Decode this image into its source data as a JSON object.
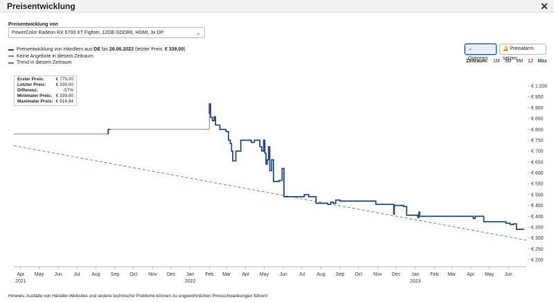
{
  "window": {
    "title": "Preisentwicklung",
    "close_icon": "close-icon"
  },
  "product": {
    "label": "Preisentwicklung von",
    "selected": "PowerColor Radeon RX 6700 XT Fighter, 12GB GDDR6, HDMI, 3x DP"
  },
  "legend": {
    "prefix": "Preisentwicklung von Händlern aus ",
    "country": "DE",
    "mid": " bis ",
    "date": "26.06.2023",
    "suffix": " (letzter Preis: ",
    "last_price": "€ 339,00",
    "close": ")",
    "no_offers": "Keine Angebote in diesem Zeitraum",
    "trend": "Trend in diesem Zeitraum"
  },
  "buttons": {
    "options": "Optionen",
    "alarm": "Preisalarm setzen"
  },
  "timerange": {
    "label": "Zeitraum:",
    "options": [
      "1M",
      "3M",
      "6M",
      "1J",
      "Max"
    ],
    "active": "Max"
  },
  "stats": [
    {
      "k": "Erster Preis:",
      "v": "€ 779,00"
    },
    {
      "k": "Letzter Preis:",
      "v": "€ 339,00"
    },
    {
      "k": "Differenz:",
      "v": "-57%"
    },
    {
      "k": "Minimaler Preis:",
      "v": "€ 339,00"
    },
    {
      "k": "Maximaler Preis:",
      "v": "€ 916,94"
    }
  ],
  "footer": "Hinweis: Ausfälle von Händler-Websites und andere technische Probleme können zu ungewöhnlichen Preisschwankungen führen!",
  "colors": {
    "price": "#1f4e96",
    "no_offers": "#888888",
    "trend": "#4aa33d"
  },
  "chart_data": {
    "type": "line",
    "ylim": [
      200,
      1000
    ],
    "y_unit": "€",
    "y_ticks": [
      "€ 200",
      "€ 250",
      "€ 300",
      "€ 350",
      "€ 400",
      "€ 450",
      "€ 500",
      "€ 550",
      "€ 600",
      "€ 650",
      "€ 700",
      "€ 750",
      "€ 800",
      "€ 850",
      "€ 900",
      "€ 950",
      "€ 1.000"
    ],
    "y_tick_values": [
      200,
      250,
      300,
      350,
      400,
      450,
      500,
      550,
      600,
      650,
      700,
      750,
      800,
      850,
      900,
      950,
      1000
    ],
    "xlim": [
      "2021-03-21",
      "2023-06-30"
    ],
    "x_ticks": [
      {
        "date": "2021-04-01",
        "label": "Apr",
        "year": "2021"
      },
      {
        "date": "2021-05-01",
        "label": "May",
        "year": ""
      },
      {
        "date": "2021-06-01",
        "label": "Jun",
        "year": ""
      },
      {
        "date": "2021-07-01",
        "label": "Jul",
        "year": ""
      },
      {
        "date": "2021-08-01",
        "label": "Aug",
        "year": ""
      },
      {
        "date": "2021-09-01",
        "label": "Sep",
        "year": ""
      },
      {
        "date": "2021-10-01",
        "label": "Oct",
        "year": ""
      },
      {
        "date": "2021-11-01",
        "label": "Nov",
        "year": ""
      },
      {
        "date": "2021-12-01",
        "label": "Dec",
        "year": ""
      },
      {
        "date": "2022-01-01",
        "label": "Jan",
        "year": "2022"
      },
      {
        "date": "2022-02-01",
        "label": "Feb",
        "year": ""
      },
      {
        "date": "2022-03-01",
        "label": "Mar",
        "year": ""
      },
      {
        "date": "2022-04-01",
        "label": "Apr",
        "year": ""
      },
      {
        "date": "2022-05-01",
        "label": "May",
        "year": ""
      },
      {
        "date": "2022-06-01",
        "label": "Jun",
        "year": ""
      },
      {
        "date": "2022-07-01",
        "label": "Jul",
        "year": ""
      },
      {
        "date": "2022-08-01",
        "label": "Aug",
        "year": ""
      },
      {
        "date": "2022-09-01",
        "label": "Sep",
        "year": ""
      },
      {
        "date": "2022-10-01",
        "label": "Oct",
        "year": ""
      },
      {
        "date": "2022-11-01",
        "label": "Nov",
        "year": ""
      },
      {
        "date": "2022-12-01",
        "label": "Dec",
        "year": ""
      },
      {
        "date": "2023-01-01",
        "label": "Jan",
        "year": "2023"
      },
      {
        "date": "2023-02-01",
        "label": "Feb",
        "year": ""
      },
      {
        "date": "2023-03-01",
        "label": "Mar",
        "year": ""
      },
      {
        "date": "2023-04-01",
        "label": "Apr",
        "year": ""
      },
      {
        "date": "2023-05-01",
        "label": "May",
        "year": ""
      },
      {
        "date": "2023-06-01",
        "label": "Jun",
        "year": ""
      }
    ],
    "series": [
      {
        "name": "Preisentwicklung von Händlern aus DE bis 26.06.2023",
        "style": "step",
        "segments": [
          [
            [
              "2021-08-20",
              779
            ],
            [
              "2021-08-21",
              800
            ],
            [
              "2021-08-25",
              800
            ]
          ],
          [
            [
              "2022-02-01",
              870
            ],
            [
              "2022-02-01",
              917
            ],
            [
              "2022-02-03",
              855
            ],
            [
              "2022-02-06",
              840
            ],
            [
              "2022-02-09",
              858
            ],
            [
              "2022-02-11",
              820
            ],
            [
              "2022-02-15",
              820
            ],
            [
              "2022-02-18",
              800
            ],
            [
              "2022-02-20",
              800
            ],
            [
              "2022-02-23",
              800
            ],
            [
              "2022-02-28",
              790
            ],
            [
              "2022-03-04",
              750
            ],
            [
              "2022-03-07",
              735
            ],
            [
              "2022-03-09",
              700
            ],
            [
              "2022-03-11",
              655
            ],
            [
              "2022-03-14",
              655
            ],
            [
              "2022-03-16",
              700
            ],
            [
              "2022-03-20",
              700
            ],
            [
              "2022-03-24",
              750
            ],
            [
              "2022-04-05",
              750
            ],
            [
              "2022-04-10",
              740
            ],
            [
              "2022-04-15",
              750
            ],
            [
              "2022-04-20",
              750
            ],
            [
              "2022-04-24",
              720
            ],
            [
              "2022-04-27",
              700
            ],
            [
              "2022-04-30",
              750
            ],
            [
              "2022-05-02",
              690
            ],
            [
              "2022-05-04",
              640
            ],
            [
              "2022-05-06",
              660
            ],
            [
              "2022-05-08",
              720
            ],
            [
              "2022-05-10",
              610
            ],
            [
              "2022-05-13",
              660
            ],
            [
              "2022-05-16",
              560
            ],
            [
              "2022-05-19",
              560
            ],
            [
              "2022-05-22",
              560
            ],
            [
              "2022-05-25",
              565
            ],
            [
              "2022-05-27",
              565
            ],
            [
              "2022-05-30",
              620
            ],
            [
              "2022-06-01",
              620
            ],
            [
              "2022-06-02",
              490
            ],
            [
              "2022-06-20",
              490
            ],
            [
              "2022-07-01",
              490
            ],
            [
              "2022-07-05",
              500
            ],
            [
              "2022-07-08",
              500
            ],
            [
              "2022-07-12",
              490
            ],
            [
              "2022-07-20",
              490
            ],
            [
              "2022-07-24",
              460
            ],
            [
              "2022-08-05",
              460
            ],
            [
              "2022-08-10",
              460
            ],
            [
              "2022-08-12",
              455
            ],
            [
              "2022-08-17",
              465
            ],
            [
              "2022-08-21",
              460
            ],
            [
              "2022-08-25",
              475
            ],
            [
              "2022-09-01",
              470
            ],
            [
              "2022-09-10",
              470
            ],
            [
              "2022-09-15",
              470
            ],
            [
              "2022-10-01",
              470
            ],
            [
              "2022-10-15",
              470
            ],
            [
              "2022-10-27",
              470
            ],
            [
              "2022-10-29",
              455
            ],
            [
              "2022-11-05",
              455
            ],
            [
              "2022-11-10",
              455
            ],
            [
              "2022-11-24",
              455
            ],
            [
              "2022-11-27",
              410
            ],
            [
              "2022-11-28",
              450
            ],
            [
              "2022-12-10",
              450
            ],
            [
              "2022-12-13",
              445
            ],
            [
              "2022-12-18",
              405
            ],
            [
              "2022-12-25",
              405
            ],
            [
              "2023-01-05",
              395
            ],
            [
              "2023-01-07",
              420
            ],
            [
              "2023-01-08",
              400
            ],
            [
              "2023-01-20",
              400
            ],
            [
              "2023-02-01",
              400
            ],
            [
              "2023-03-01",
              400
            ],
            [
              "2023-04-01",
              400
            ],
            [
              "2023-04-05",
              390
            ],
            [
              "2023-04-08",
              400
            ],
            [
              "2023-04-15",
              400
            ],
            [
              "2023-04-22",
              375
            ],
            [
              "2023-05-01",
              375
            ],
            [
              "2023-05-15",
              375
            ],
            [
              "2023-05-28",
              368
            ],
            [
              "2023-06-04",
              362
            ],
            [
              "2023-06-09",
              365
            ],
            [
              "2023-06-14",
              340
            ],
            [
              "2023-06-26",
              339
            ]
          ]
        ]
      },
      {
        "name": "Keine Angebote in diesem Zeitraum",
        "style": "step",
        "segments": [
          [
            [
              "2021-03-21",
              779
            ],
            [
              "2021-08-20",
              779
            ]
          ],
          [
            [
              "2021-08-25",
              800
            ],
            [
              "2022-01-31",
              800
            ],
            [
              "2022-02-01",
              870
            ]
          ]
        ]
      },
      {
        "name": "Trend in diesem Zeitraum",
        "style": "dashed",
        "segments": [
          [
            [
              "2021-03-21",
              725
            ],
            [
              "2023-06-30",
              290
            ]
          ]
        ]
      }
    ],
    "grid": false
  }
}
